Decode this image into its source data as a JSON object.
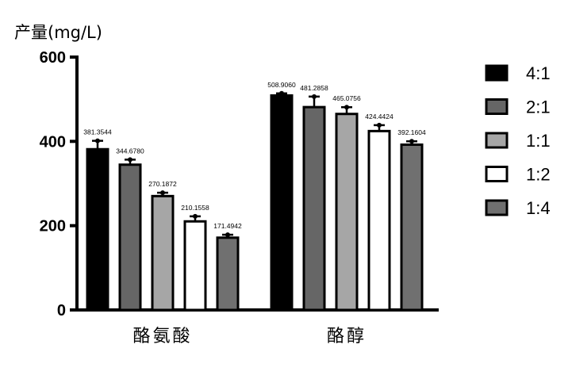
{
  "chart_data": {
    "type": "bar",
    "title": "",
    "ylabel": "产量(mg/L)",
    "xlabel": "",
    "ylim": [
      0,
      600
    ],
    "yticks": [
      0,
      200,
      400,
      600
    ],
    "categories": [
      "酪氨酸",
      "酪醇"
    ],
    "legend_position": "right",
    "series": [
      {
        "name": "4:1",
        "color": "#000000",
        "values": [
          381.3544,
          508.906
        ],
        "errors": [
          20,
          5
        ]
      },
      {
        "name": "2:1",
        "color": "#666666",
        "values": [
          344.678,
          481.2858
        ],
        "errors": [
          12,
          25
        ]
      },
      {
        "name": "1:1",
        "color": "#a6a6a6",
        "values": [
          270.1872,
          465.0756
        ],
        "errors": [
          8,
          16
        ]
      },
      {
        "name": "1:2",
        "color": "#ffffff",
        "values": [
          210.1558,
          424.4424
        ],
        "errors": [
          12,
          14
        ]
      },
      {
        "name": "1:4",
        "color": "#707070",
        "values": [
          171.4942,
          392.1604
        ],
        "errors": [
          7,
          8
        ]
      }
    ],
    "data_labels": [
      [
        "381.3544",
        "508.9060"
      ],
      [
        "344.6780",
        "481.2858"
      ],
      [
        "270.1872",
        "465.0756"
      ],
      [
        "210.1558",
        "424.4424"
      ],
      [
        "171.4942",
        "392.1604"
      ]
    ]
  }
}
